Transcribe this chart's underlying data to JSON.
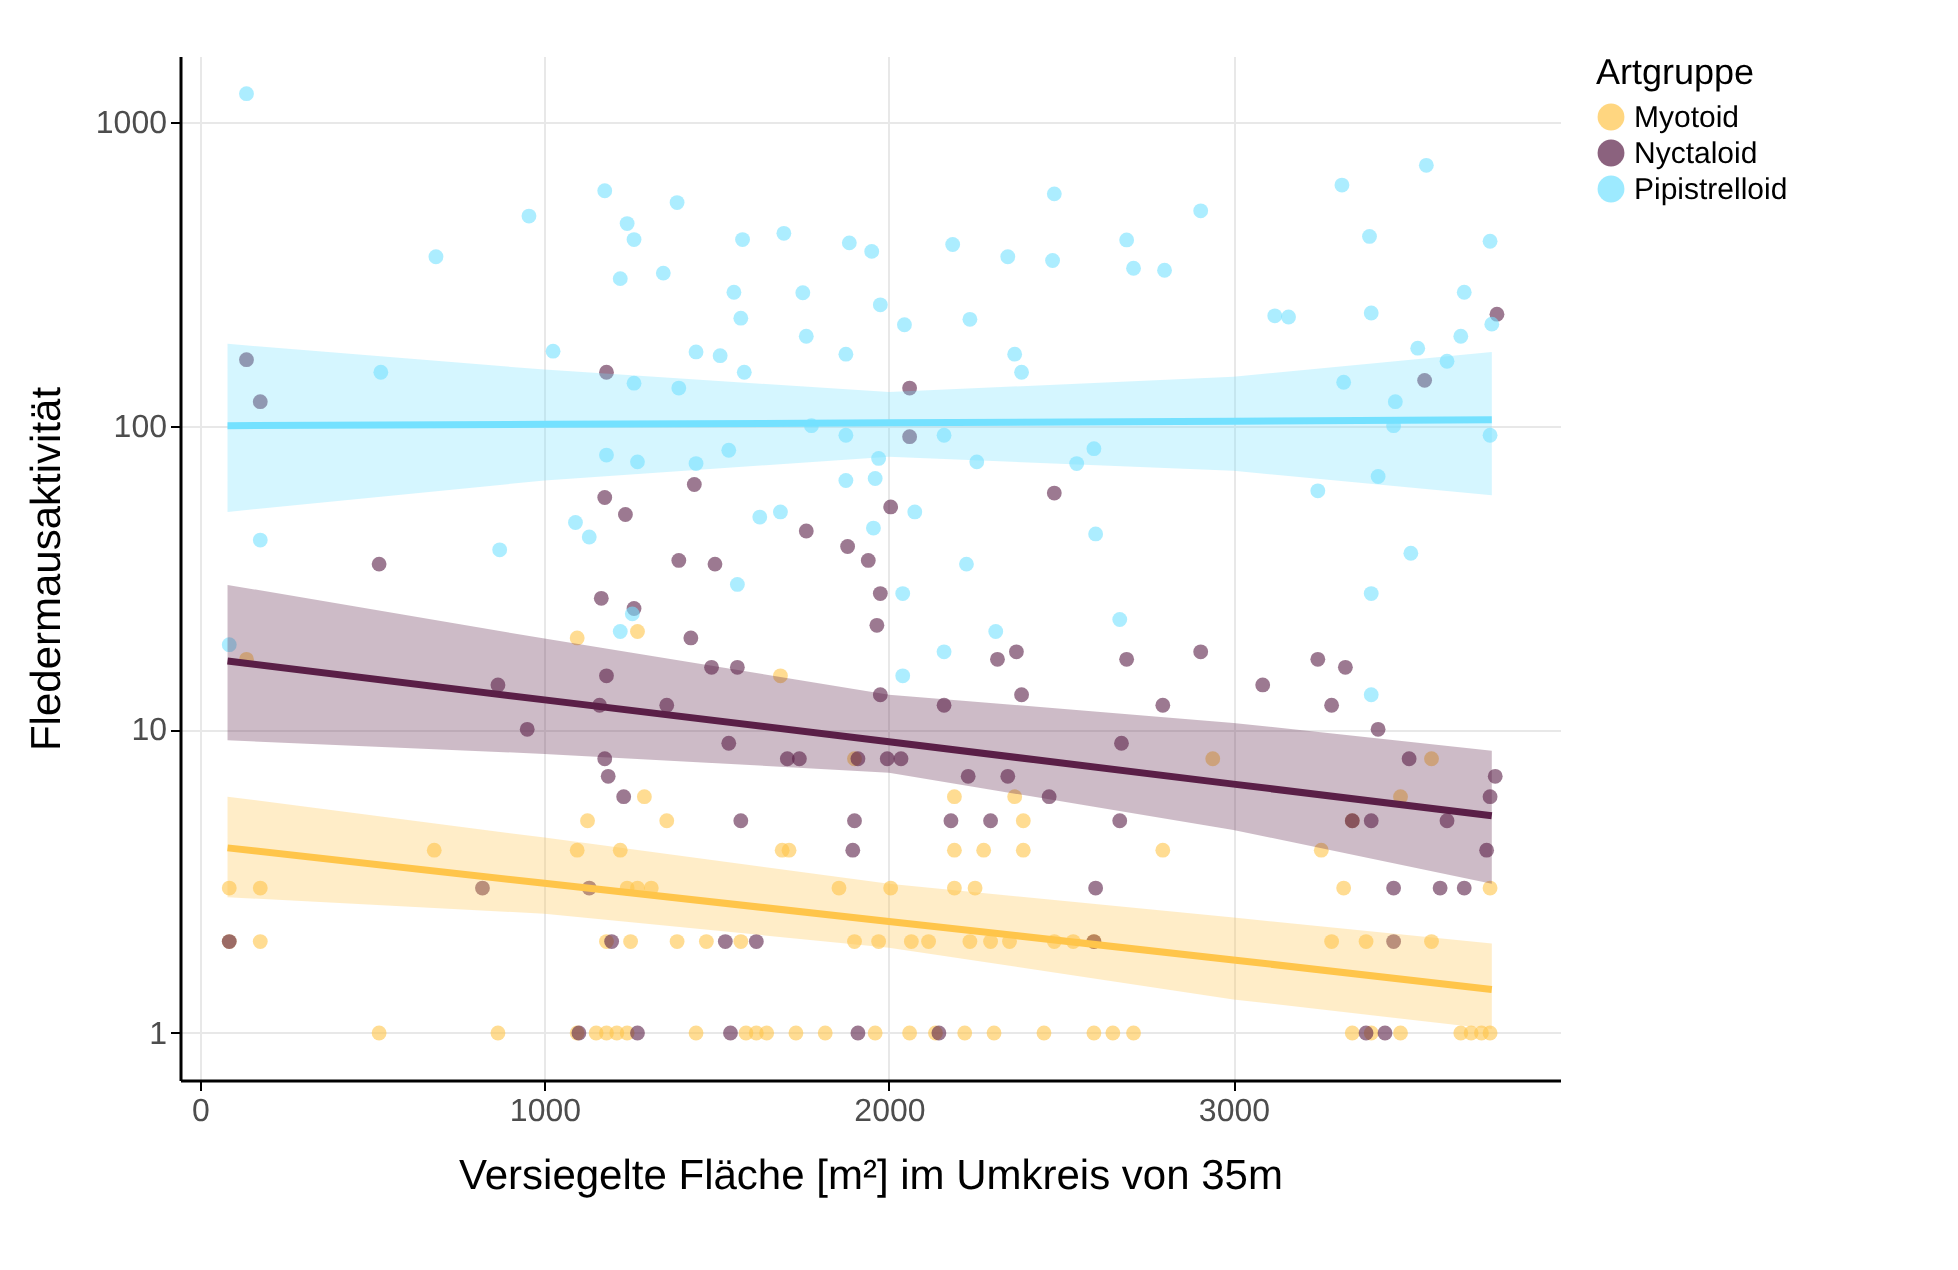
{
  "chart_data": {
    "type": "scatter",
    "xlabel": "Versiegelte Fläche [m²] im Umkreis von 35m",
    "ylabel": "Fledermausaktivität",
    "legend_title": "Artgruppe",
    "xlim": [
      -58,
      3948
    ],
    "ylim": [
      0.7,
      1650
    ],
    "xticks": [
      0,
      1000,
      2000,
      3000
    ],
    "yticks": [
      1,
      10,
      100,
      1000
    ],
    "log": "y",
    "grid": true,
    "legend": "right",
    "marker": "circle",
    "series": [
      {
        "name": "Myotoid",
        "color": "#ffc54a",
        "x": [
          520,
          865,
          1095,
          1150,
          1180,
          1210,
          1240,
          1440,
          1585,
          1615,
          1645,
          1730,
          1815,
          1960,
          2060,
          2135,
          2220,
          2305,
          2450,
          2595,
          2650,
          2710,
          3345,
          3400,
          3485,
          3660,
          3690,
          3720,
          3745,
          85,
          175,
          1180,
          1250,
          1385,
          1470,
          1570,
          1900,
          1970,
          2065,
          2115,
          2235,
          2295,
          2350,
          2480,
          2535,
          2595,
          3285,
          3385,
          3575,
          85,
          175,
          1240,
          1270,
          1310,
          1855,
          2005,
          2190,
          2250,
          3320,
          3745,
          680,
          1095,
          1220,
          1690,
          1710,
          2190,
          2275,
          2390,
          2795,
          3255,
          1125,
          1355,
          2390,
          3345,
          1290,
          2190,
          2365,
          3485,
          1900,
          2940,
          3575,
          135,
          1095,
          1270,
          1685
        ],
        "values": [
          1,
          1,
          1,
          1,
          1,
          1,
          1,
          1,
          1,
          1,
          1,
          1,
          1,
          1,
          1,
          1,
          1,
          1,
          1,
          1,
          1,
          1,
          1,
          1,
          1,
          1,
          1,
          1,
          1,
          2,
          2,
          2,
          2,
          2,
          2,
          2,
          2,
          2,
          2,
          2,
          2,
          2,
          2,
          2,
          2,
          2,
          2,
          2,
          2,
          3,
          3,
          3,
          3,
          3,
          3,
          3,
          3,
          3,
          3,
          3,
          4,
          4,
          4,
          4,
          4,
          4,
          4,
          4,
          4,
          4,
          5,
          5,
          5,
          5,
          6,
          6,
          6,
          6,
          8,
          8,
          8,
          17,
          20,
          21,
          15
        ]
      },
      {
        "name": "Nyctaloid",
        "color": "#5a1f47",
        "x": [
          85,
          135,
          175,
          520,
          865,
          950,
          1165,
          1180,
          1175,
          1235,
          1435,
          1390,
          1495,
          1760,
          1880,
          1940,
          1260,
          1425,
          1180,
          1485,
          1560,
          1355,
          1160,
          1535,
          1175,
          1705,
          1740,
          1910,
          1185,
          1230,
          1570,
          1900,
          1895,
          820,
          1130,
          1195,
          1525,
          1615,
          1100,
          1270,
          1540,
          1910,
          1975,
          1965,
          1975,
          2160,
          2315,
          2370,
          2385,
          2690,
          2795,
          2905,
          1995,
          2035,
          2230,
          2345,
          2465,
          2675,
          2180,
          2295,
          2600,
          2670,
          3085,
          3245,
          3325,
          3285,
          3420,
          3510,
          3760,
          3745,
          3345,
          3400,
          3620,
          3735,
          3465,
          3600,
          3670,
          2595,
          3465,
          2145,
          3385,
          3440,
          3765,
          3555,
          2060,
          2060,
          2005,
          2480
        ],
        "values": [
          2,
          165,
          120,
          35,
          14,
          10,
          27,
          150,
          58,
          51,
          64,
          36,
          35,
          45,
          40,
          36,
          25,
          20,
          15,
          16,
          16,
          12,
          12,
          9,
          8,
          8,
          8,
          8,
          7,
          6,
          5,
          5,
          4,
          3,
          3,
          2,
          2,
          2,
          1,
          1,
          1,
          1,
          28,
          22,
          13,
          12,
          17,
          18,
          13,
          17,
          12,
          18,
          8,
          8,
          7,
          7,
          6,
          9,
          5,
          5,
          3,
          5,
          14,
          17,
          16,
          12,
          10,
          8,
          7,
          6,
          5,
          5,
          5,
          4,
          3,
          3,
          3,
          2,
          2,
          1,
          1,
          1,
          233,
          141,
          133,
          92,
          54,
          60
        ]
      },
      {
        "name": "Pipistrelloid",
        "color": "#74e1ff",
        "x": [
          135,
          685,
          955,
          1175,
          1240,
          1260,
          1385,
          1220,
          1345,
          1575,
          1695,
          1550,
          1570,
          1760,
          1750,
          1885,
          1440,
          1510,
          1580,
          1875,
          525,
          1025,
          1260,
          1390,
          175,
          870,
          1090,
          1130,
          1180,
          1270,
          1440,
          1535,
          1625,
          1685,
          1875,
          1775,
          1875,
          1950,
          2185,
          2345,
          2475,
          2480,
          2690,
          2710,
          2800,
          2905,
          3315,
          3395,
          3400,
          3560,
          3745,
          3670,
          3660,
          3535,
          3620,
          3750,
          1975,
          2045,
          2235,
          2365,
          2385,
          3120,
          3160,
          3320,
          3470,
          3465,
          3745,
          2160,
          1970,
          2255,
          2545,
          2595,
          3245,
          3420,
          2600,
          1960,
          2075,
          1955,
          2225,
          3515,
          2040,
          2160,
          2310,
          2670,
          2040,
          3400,
          3400,
          85,
          1220,
          1255,
          1560
        ],
        "values": [
          1240,
          360,
          490,
          594,
          463,
          410,
          543,
          305,
          318,
          410,
          430,
          275,
          226,
          197,
          274,
          400,
          175,
          170,
          150,
          172,
          150,
          176,
          138,
          133,
          42,
          39,
          48,
          43,
          80,
          76,
          75,
          83,
          50,
          52,
          66,
          100,
          93,
          375,
          395,
          360,
          350,
          580,
          409,
          330,
          325,
          510,
          620,
          420,
          235,
          720,
          405,
          275,
          197,
          180,
          163,
          216,
          250,
          215,
          224,
          172,
          150,
          230,
          228,
          139,
          120,
          100,
          93,
          93,
          78,
          76,
          75,
          84,
          61,
          68,
          44,
          67,
          52,
          46,
          35,
          38,
          28,
          18,
          21,
          23,
          15,
          28,
          13,
          19,
          21,
          24,
          30
        ]
      },
      {
        "type": "line",
        "marker": "none",
        "color": "#ffc54a",
        "x": [
          80,
          1000,
          2000,
          3000,
          3750
        ],
        "values": [
          4.07,
          3.11,
          2.33,
          1.74,
          1.39
        ],
        "lower": [
          2.8,
          2.47,
          1.91,
          1.29,
          1.03
        ],
        "upper": [
          6.0,
          4.4,
          3.1,
          2.4,
          1.97
        ]
      },
      {
        "type": "line",
        "marker": "none",
        "color": "#5a1f47",
        "x": [
          80,
          1000,
          2000,
          3000,
          3750
        ],
        "values": [
          16.8,
          12.5,
          9.1,
          6.6,
          5.19
        ],
        "lower": [
          9.2,
          8.3,
          7.2,
          4.66,
          3.1
        ],
        "upper": [
          29.9,
          19.9,
          13.0,
          10.5,
          8.5
        ]
      },
      {
        "type": "line",
        "marker": "none",
        "color": "#74e1ff",
        "x": [
          80,
          1000,
          2000,
          3000,
          3750
        ],
        "values": [
          100,
          101,
          102.2,
          103.5,
          104.6
        ],
        "lower": [
          52,
          66,
          79,
          71,
          59
        ],
        "upper": [
          186,
          153,
          129,
          145,
          175
        ]
      }
    ]
  }
}
